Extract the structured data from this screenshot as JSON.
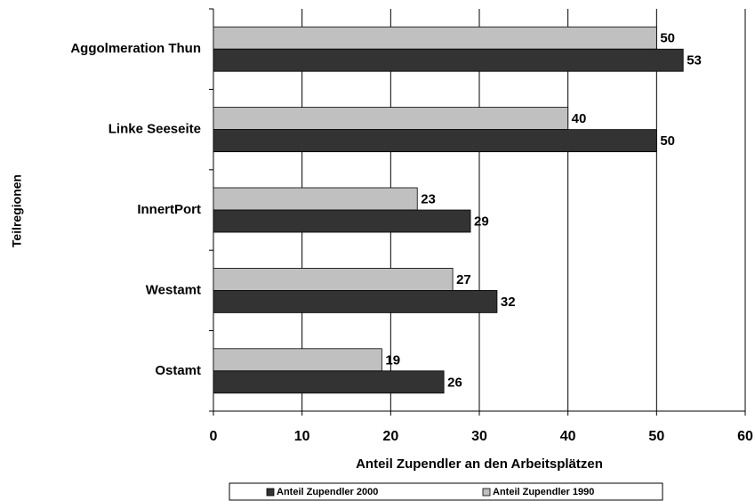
{
  "chart_data": {
    "type": "bar",
    "orientation": "horizontal",
    "x_label": "Anteil Zupendler an den Arbeitsplätzen",
    "y_label": "Teilregionen",
    "categories": [
      "Aggolmeration Thun",
      "Linke Seeseite",
      "InnertPort",
      "Westamt",
      "Ostamt"
    ],
    "series": [
      {
        "name": "Anteil Zupendler 2000",
        "color": "#333333",
        "values": [
          53,
          50,
          29,
          32,
          26
        ]
      },
      {
        "name": "Anteil Zupendler 1990",
        "color": "#c0c0c0",
        "values": [
          50,
          40,
          23,
          27,
          19
        ]
      }
    ],
    "xlim": [
      0,
      60
    ],
    "xticks": [
      0,
      10,
      20,
      30,
      40,
      50,
      60
    ],
    "grid": true,
    "legend": "bottom"
  }
}
